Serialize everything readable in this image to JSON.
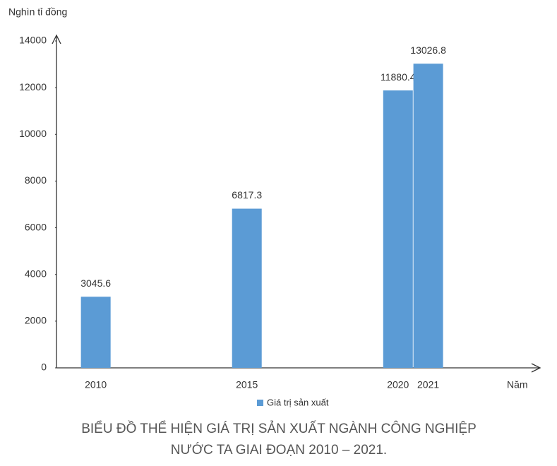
{
  "chart_data": {
    "type": "bar",
    "title": [
      "BIỂU ĐỒ THỂ HIỆN GIÁ TRỊ SẢN XUẤT NGÀNH CÔNG NGHIỆP",
      "NƯỚC TA GIAI ĐOẠN 2010 – 2021."
    ],
    "y_label": "Nghìn tỉ đồng",
    "x_label": "Năm",
    "x": [
      2010,
      2015,
      2020,
      2021
    ],
    "xlim": [
      2008.7,
      2024.7
    ],
    "series": [
      {
        "name": "Giá trị sản xuất",
        "color": "#5b9bd5",
        "values": [
          3045.6,
          6817.3,
          11880.4,
          13026.8
        ]
      }
    ],
    "ylim": [
      0,
      14000
    ],
    "yticks": [
      0,
      2000,
      4000,
      6000,
      8000,
      10000,
      12000,
      14000
    ],
    "grid": false,
    "legend": "bottom"
  }
}
